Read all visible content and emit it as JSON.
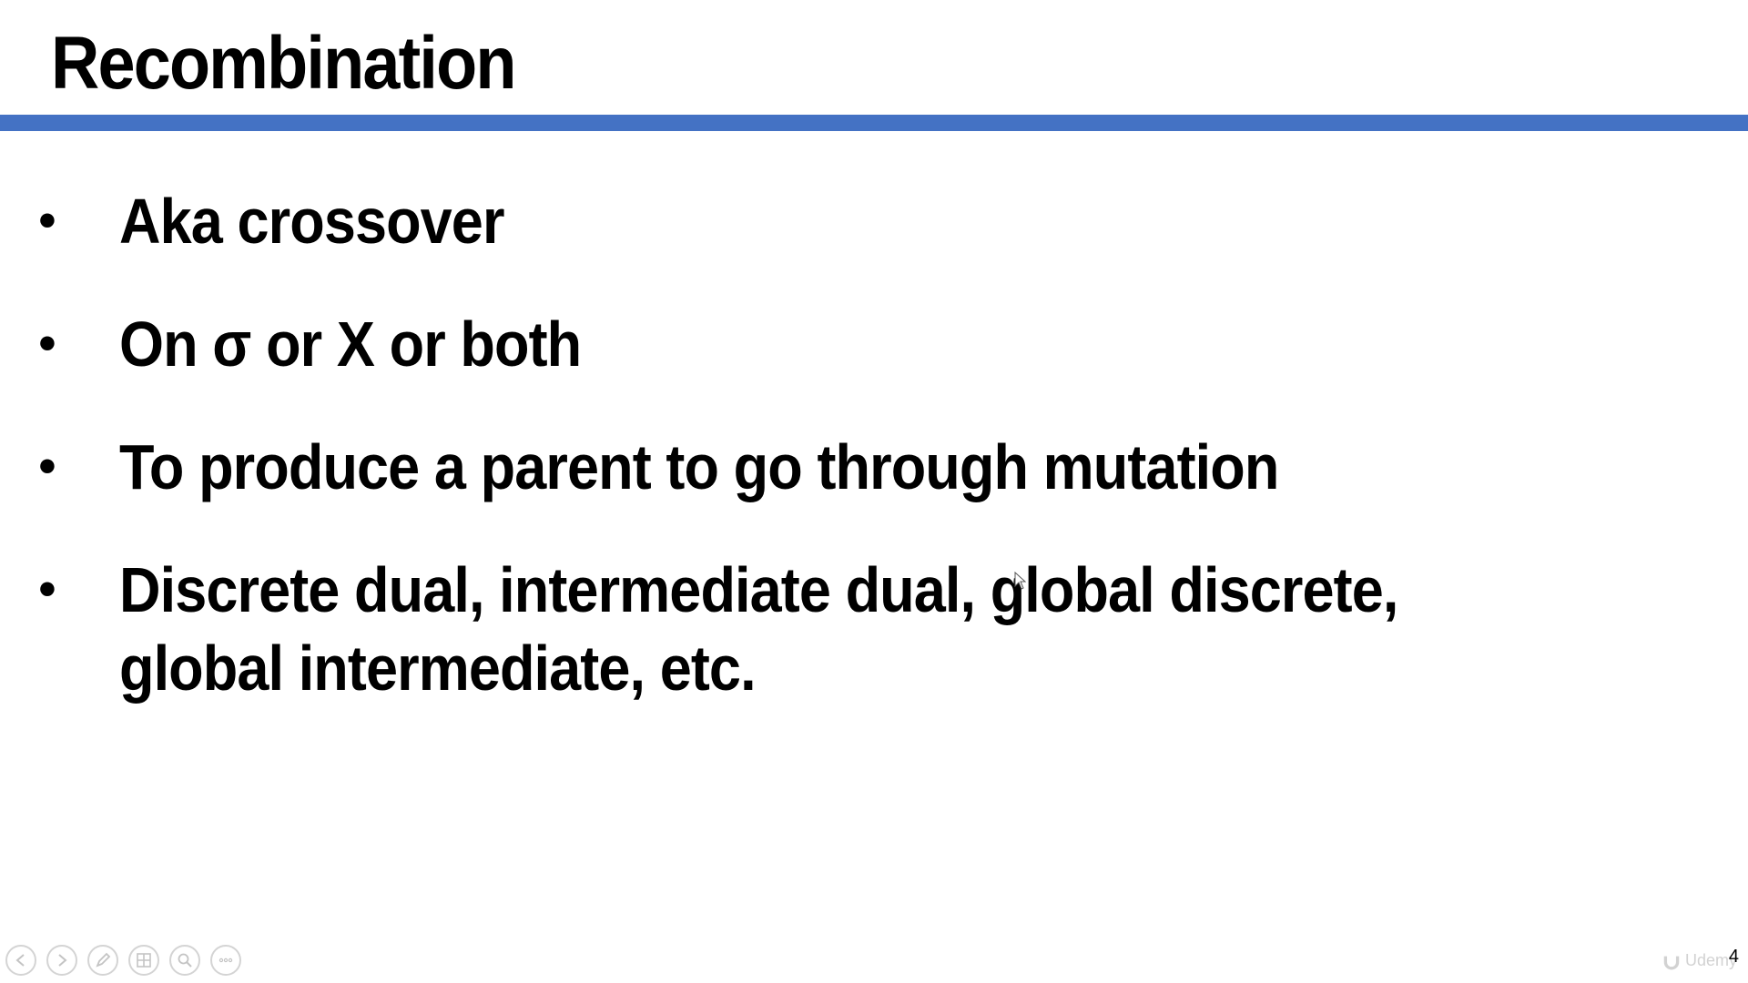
{
  "slide": {
    "title": "Recombination",
    "accent_color": "#4472C4",
    "bullet_symbol": "•",
    "bullets": [
      "Aka crossover",
      "On σ or X or both",
      "To produce a parent to go through mutation",
      "Discrete dual, intermediate dual, global discrete, global intermediate, etc."
    ],
    "page_number": "4"
  },
  "controls": [
    {
      "name": "previous-slide",
      "icon": "arrow-left-icon"
    },
    {
      "name": "next-slide",
      "icon": "arrow-right-icon"
    },
    {
      "name": "pen-tool",
      "icon": "pen-icon"
    },
    {
      "name": "see-all-slides",
      "icon": "slides-grid-icon"
    },
    {
      "name": "zoom",
      "icon": "magnifier-icon"
    },
    {
      "name": "more-options",
      "icon": "ellipsis-icon"
    }
  ],
  "watermark": {
    "text": "Udemy",
    "icon": "udemy-logo-icon"
  }
}
